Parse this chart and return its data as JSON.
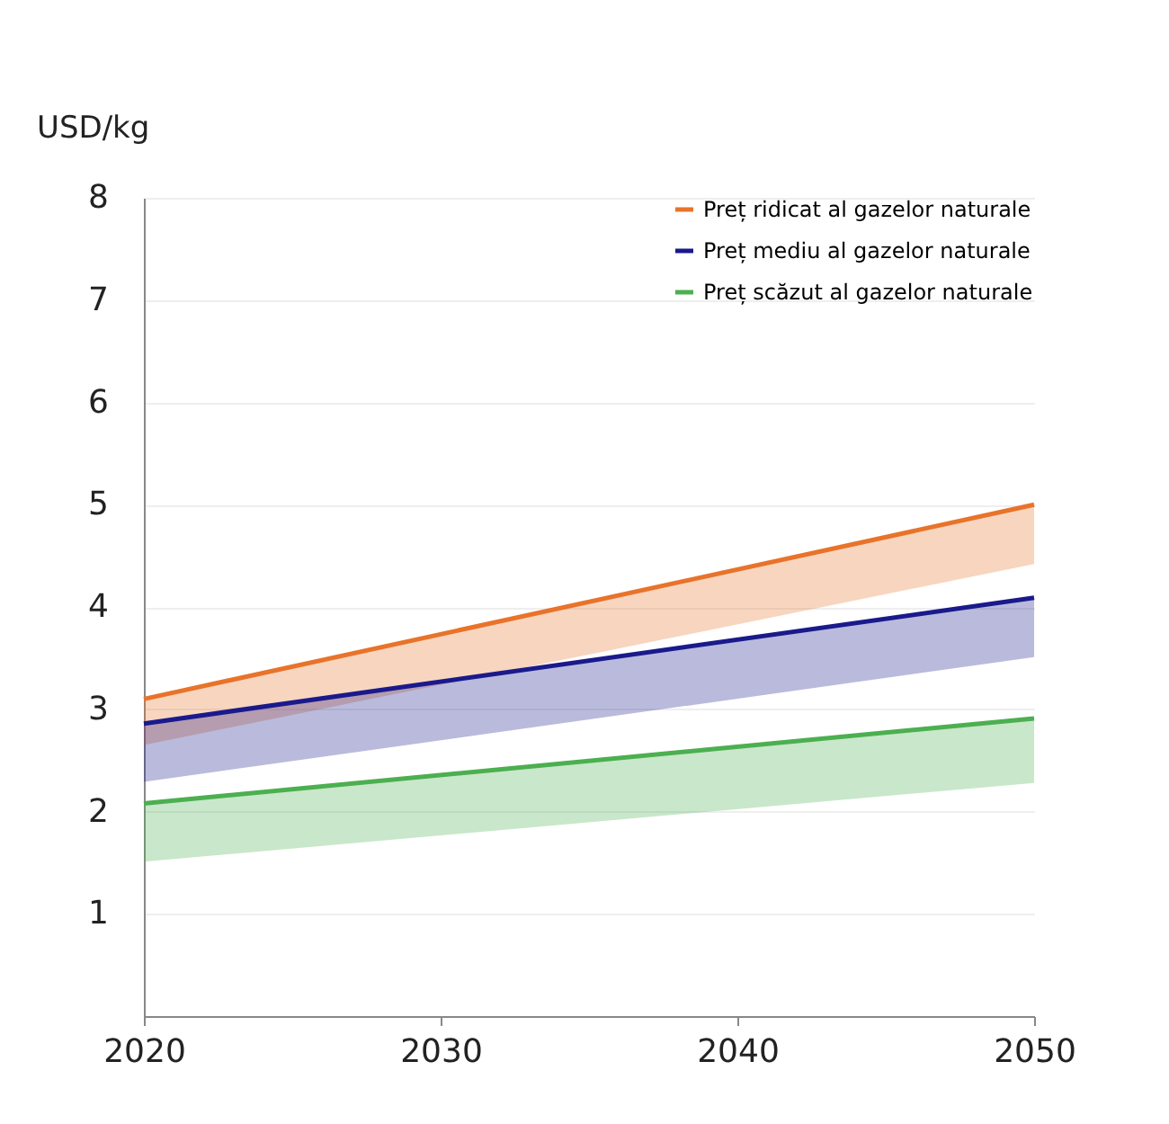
{
  "chart_data": {
    "type": "line",
    "ylabel": "USD/kg",
    "x": [
      2020,
      2050
    ],
    "series": [
      {
        "name": "Preț ridicat al gazelor naturale",
        "color": "#e8732a",
        "values": [
          3.1,
          5.0
        ],
        "lower": [
          2.65,
          4.42
        ],
        "upper": [
          3.1,
          5.0
        ]
      },
      {
        "name": "Preț mediu al gazelor naturale",
        "color": "#1a1a8c",
        "values": [
          2.86,
          4.09
        ],
        "lower": [
          2.29,
          3.51
        ],
        "upper": [
          2.86,
          4.09
        ]
      },
      {
        "name": "Preț scăzut al gazelor naturale",
        "color": "#4caf50",
        "values": [
          2.08,
          2.91
        ],
        "lower": [
          1.51,
          2.28
        ],
        "upper": [
          2.08,
          2.91
        ]
      }
    ],
    "xlim": [
      2020,
      2050
    ],
    "xticks": [
      2020,
      2030,
      2040,
      2050
    ],
    "ylim": [
      0,
      8
    ],
    "yticks": [
      1,
      2,
      3,
      4,
      5,
      6,
      7,
      8
    ],
    "grid": "y",
    "legend": "top right",
    "marker": "none",
    "line_style": "solid"
  }
}
